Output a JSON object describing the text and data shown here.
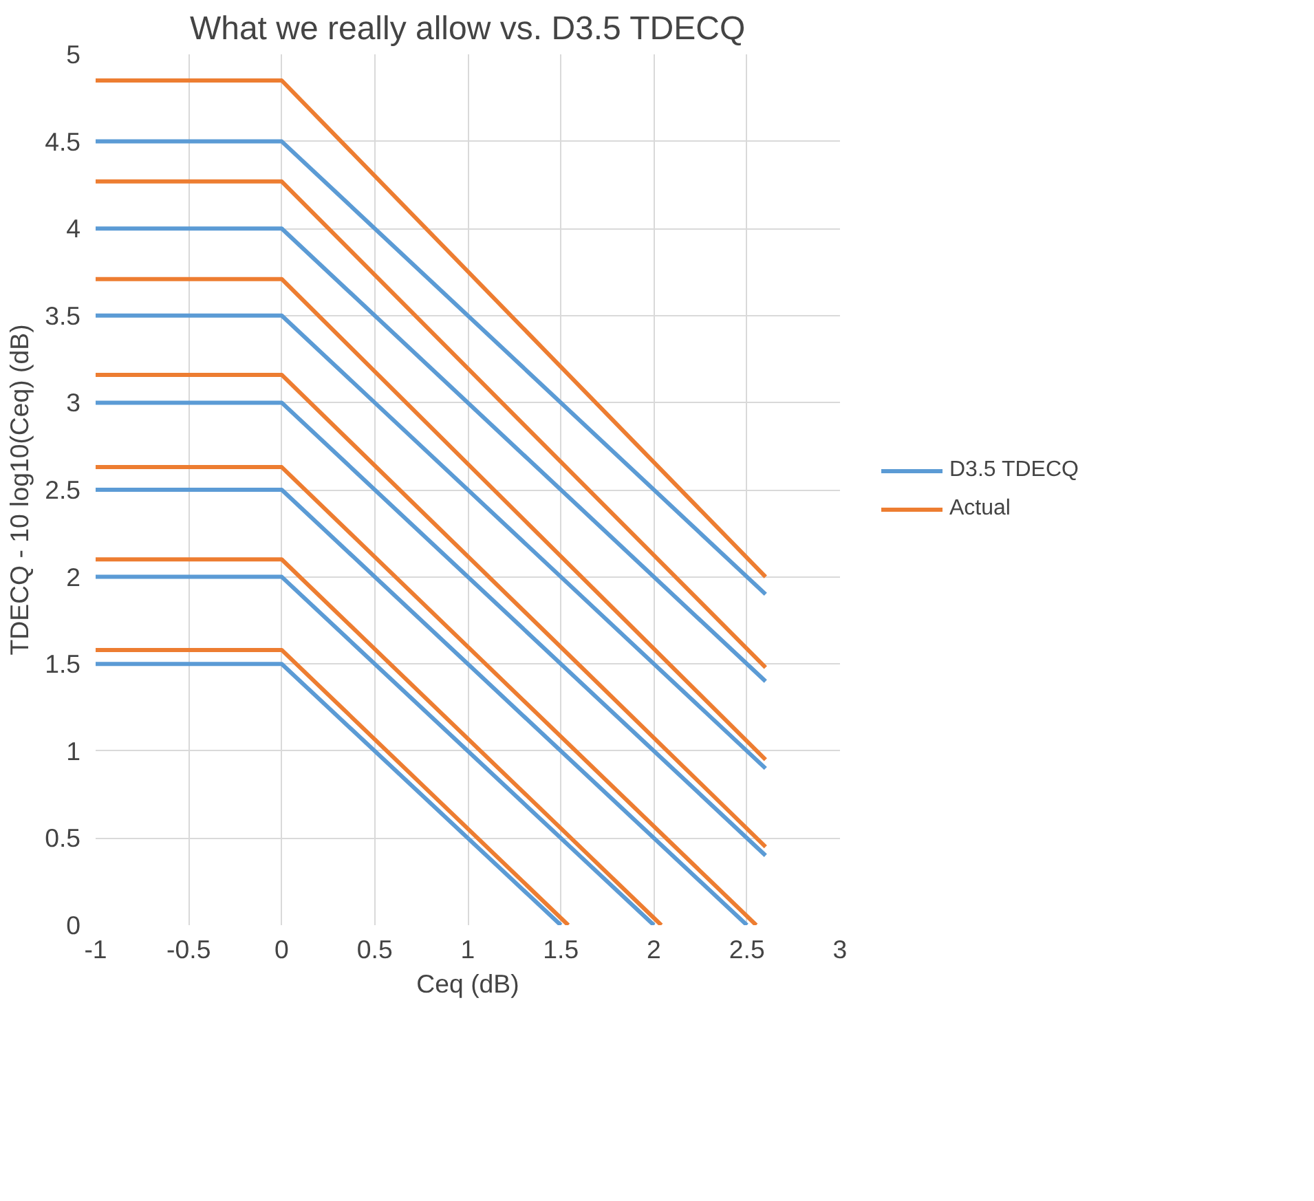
{
  "chart_data": {
    "type": "line",
    "title": "What we really allow vs. D3.5 TDECQ",
    "xlabel": "Ceq (dB)",
    "ylabel": "TDECQ - 10 log10(Ceq) (dB)",
    "xlim": [
      -1,
      3
    ],
    "xticks": [
      -1,
      -0.5,
      0,
      0.5,
      1,
      1.5,
      2,
      2.5,
      3
    ],
    "ylim": [
      0,
      5
    ],
    "yticks": [
      0,
      0.5,
      1,
      1.5,
      2,
      2.5,
      3,
      3.5,
      4,
      4.5,
      5
    ],
    "grid": true,
    "legend": "right",
    "marker": "none",
    "line_style": "solid",
    "series": [
      {
        "name": "D3.5 TDECQ",
        "color": "#5b9bd5",
        "x": [
          -1,
          0,
          1.5
        ],
        "values": [
          1.5,
          1.5,
          0
        ]
      },
      {
        "color": "#5b9bd5",
        "x": [
          -1,
          0,
          2
        ],
        "values": [
          2,
          2,
          0
        ]
      },
      {
        "color": "#5b9bd5",
        "x": [
          -1,
          0,
          2.5
        ],
        "values": [
          2.5,
          2.5,
          0
        ]
      },
      {
        "color": "#5b9bd5",
        "x": [
          -1,
          0,
          2.6
        ],
        "values": [
          3,
          3,
          0.4
        ]
      },
      {
        "color": "#5b9bd5",
        "x": [
          -1,
          0,
          2.6
        ],
        "values": [
          3.5,
          3.5,
          0.9
        ]
      },
      {
        "color": "#5b9bd5",
        "x": [
          -1,
          0,
          2.6
        ],
        "values": [
          4,
          4,
          1.4
        ]
      },
      {
        "color": "#5b9bd5",
        "x": [
          -1,
          0,
          2.6
        ],
        "values": [
          4.5,
          4.5,
          1.9
        ]
      },
      {
        "name": "Actual",
        "color": "#ed7d31",
        "x": [
          -1,
          0,
          1.54
        ],
        "values": [
          1.58,
          1.58,
          0
        ]
      },
      {
        "color": "#ed7d31",
        "x": [
          -1,
          0,
          2.04
        ],
        "values": [
          2.1,
          2.1,
          0
        ]
      },
      {
        "color": "#ed7d31",
        "x": [
          -1,
          0,
          2.55
        ],
        "values": [
          2.63,
          2.63,
          0
        ]
      },
      {
        "color": "#ed7d31",
        "x": [
          -1,
          0,
          2.6
        ],
        "values": [
          3.16,
          3.16,
          0.45
        ]
      },
      {
        "color": "#ed7d31",
        "x": [
          -1,
          0,
          2.6
        ],
        "values": [
          3.71,
          3.71,
          0.95
        ]
      },
      {
        "color": "#ed7d31",
        "x": [
          -1,
          0,
          2.6
        ],
        "values": [
          4.27,
          4.27,
          1.48
        ]
      },
      {
        "color": "#ed7d31",
        "x": [
          -1,
          0,
          2.6
        ],
        "values": [
          4.85,
          4.85,
          2.0
        ]
      }
    ]
  }
}
